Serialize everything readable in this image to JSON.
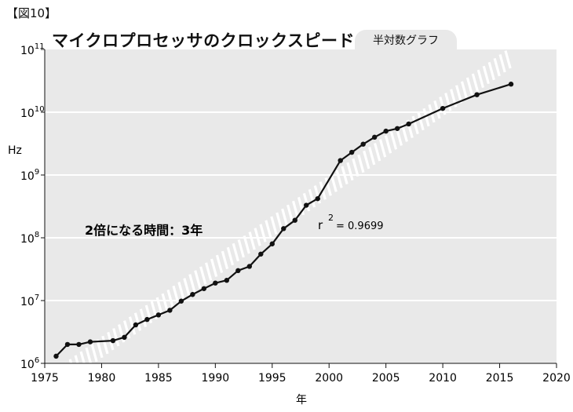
{
  "figure_label": "【図10】",
  "chart_data": {
    "type": "line",
    "title": "マイクロプロセッサのクロックスピード",
    "scale_tag": "半対数グラフ",
    "xlabel": "年",
    "ylabel": "Hz",
    "y_scale": "log",
    "xlim": [
      1975,
      2020
    ],
    "ylim": [
      1000000,
      100000000000
    ],
    "x_ticks": [
      1975,
      1980,
      1985,
      1990,
      1995,
      2000,
      2005,
      2010,
      2015,
      2020
    ],
    "y_ticks": [
      {
        "base": "10",
        "exp": "6",
        "value": 1000000
      },
      {
        "base": "10",
        "exp": "7",
        "value": 10000000
      },
      {
        "base": "10",
        "exp": "8",
        "value": 100000000
      },
      {
        "base": "10",
        "exp": "9",
        "value": 1000000000
      },
      {
        "base": "10",
        "exp": "10",
        "value": 10000000000
      },
      {
        "base": "10",
        "exp": "11",
        "value": 100000000000
      }
    ],
    "grid": true,
    "series": [
      {
        "x": [
          1976,
          1977,
          1978,
          1979,
          1981,
          1982,
          1983,
          1984,
          1985,
          1986,
          1987,
          1988,
          1989,
          1990,
          1991,
          1992,
          1993,
          1994,
          1995,
          1996,
          1997,
          1998,
          1999,
          2001,
          2002,
          2003,
          2004,
          2005,
          2006,
          2007,
          2010,
          2013,
          2016
        ],
        "y": [
          1300000,
          2000000,
          2000000,
          2200000,
          2300000,
          2600000,
          4100000,
          5000000,
          5900000,
          7000000,
          9800000,
          12500000,
          15500000,
          19000000,
          21000000,
          30000000,
          35000000,
          55000000,
          80000000,
          140000000,
          190000000,
          330000000,
          420000000,
          1700000000,
          2300000000,
          3100000000,
          4000000000,
          5000000000,
          5500000000,
          6500000000,
          11500000000,
          19000000000,
          28000000000
        ]
      }
    ],
    "trend": {
      "x": [
        1976,
        2016
      ],
      "y": [
        550000,
        75000000000
      ],
      "style": "hatched"
    },
    "annotations": {
      "doubling": "2倍になる時間：3年",
      "r2_prefix": "r",
      "r2_exp": "2",
      "r2_value": "= 0.9699"
    },
    "colors": {
      "plot_bg": "#e9e9e9",
      "line": "#111111",
      "grid": "#ffffff",
      "trend": "#ffffff"
    }
  }
}
